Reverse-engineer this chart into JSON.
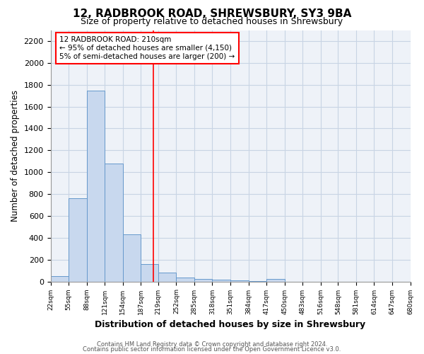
{
  "title": "12, RADBROOK ROAD, SHREWSBURY, SY3 9BA",
  "subtitle": "Size of property relative to detached houses in Shrewsbury",
  "xlabel": "Distribution of detached houses by size in Shrewsbury",
  "ylabel": "Number of detached properties",
  "bar_color": "#c8d8ee",
  "bar_edge_color": "#6699cc",
  "axes_bg_color": "#eef2f8",
  "grid_color": "#c8d4e4",
  "vline_x": 210,
  "vline_color": "red",
  "annotation_line1": "12 RADBROOK ROAD: 210sqm",
  "annotation_line2": "← 95% of detached houses are smaller (4,150)",
  "annotation_line3": "5% of semi-detached houses are larger (200) →",
  "footer1": "Contains HM Land Registry data © Crown copyright and database right 2024.",
  "footer2": "Contains public sector information licensed under the Open Government Licence v3.0.",
  "bin_edges": [
    22,
    55,
    88,
    121,
    154,
    187,
    219,
    252,
    285,
    318,
    351,
    384,
    417,
    450,
    483,
    516,
    548,
    581,
    614,
    647,
    680
  ],
  "bar_heights": [
    50,
    760,
    1745,
    1080,
    430,
    160,
    80,
    35,
    25,
    15,
    10,
    5,
    20,
    0,
    0,
    0,
    0,
    0,
    0,
    0
  ],
  "ylim": [
    0,
    2300
  ],
  "yticks": [
    0,
    200,
    400,
    600,
    800,
    1000,
    1200,
    1400,
    1600,
    1800,
    2000,
    2200
  ],
  "figsize": [
    6.0,
    5.0
  ],
  "dpi": 100
}
